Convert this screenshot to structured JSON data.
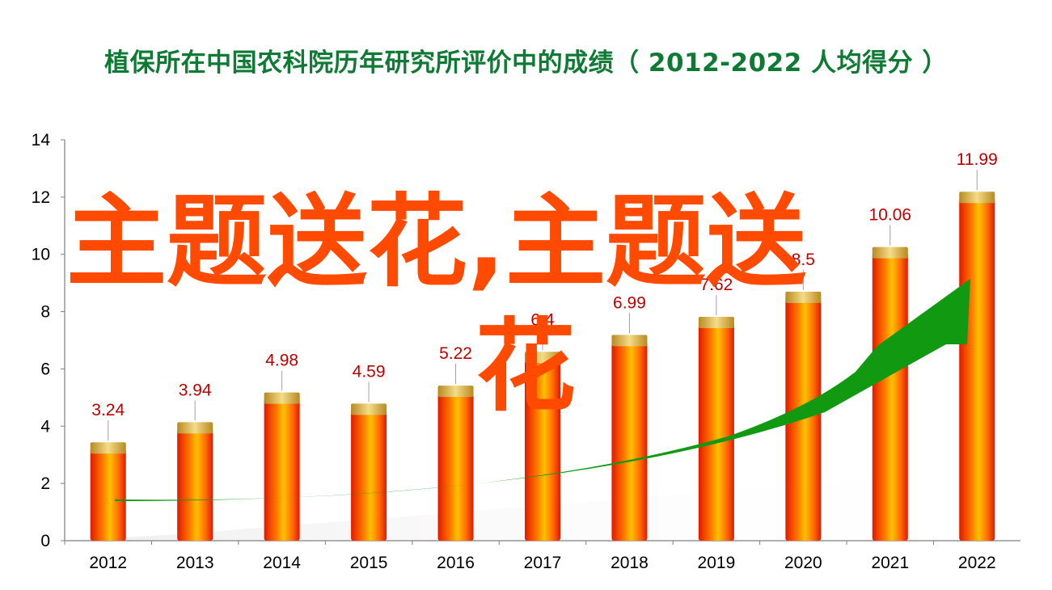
{
  "title": "植保所在中国农科院历年研究所评价中的成绩（ 2012-2022  人均得分 ）",
  "watermark": {
    "line1": "主题送花,主题送",
    "line2": "花",
    "color": "#ff4a00"
  },
  "colors": {
    "title": "#0e7a34",
    "bar_mid": "#ffc000",
    "bar_edge": "#e01a00",
    "bar_cap": "#d8b040",
    "data_label": "#c00000",
    "trend_arrow": "#119a11"
  },
  "chart_data": {
    "type": "bar",
    "categories": [
      "2012",
      "2013",
      "2014",
      "2015",
      "2016",
      "2017",
      "2018",
      "2019",
      "2020",
      "2021",
      "2022"
    ],
    "values": [
      3.24,
      3.94,
      4.98,
      4.59,
      5.22,
      6.4,
      6.99,
      7.62,
      8.5,
      10.06,
      11.99
    ],
    "data_labels": [
      "3.24",
      "3.94",
      "4.98",
      "4.59",
      "5.22",
      "6.4",
      "6.99",
      "7.62",
      "8.5",
      "10.06",
      "11.99"
    ],
    "ylim": [
      0,
      14
    ],
    "yticks": [
      "0",
      "2",
      "4",
      "6",
      "8",
      "10",
      "12",
      "14"
    ],
    "grid": false,
    "legend": "none",
    "trend_arrow": true
  }
}
